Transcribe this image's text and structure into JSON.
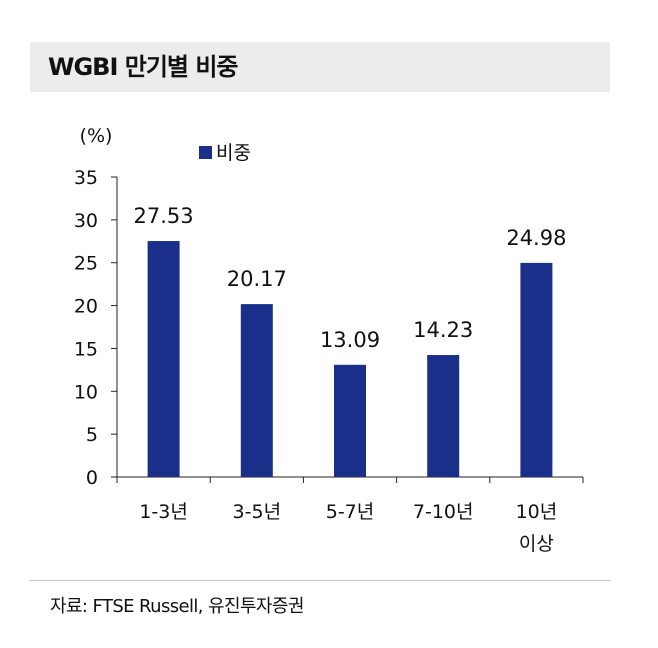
{
  "header": {
    "title": "WGBI 만기별 비중"
  },
  "chart_data": {
    "type": "bar",
    "unit_label": "(%)",
    "categories": [
      "1-3년",
      "3-5년",
      "5-7년",
      "7-10년",
      "10년 이상"
    ],
    "category_lines": [
      [
        "1-3년"
      ],
      [
        "3-5년"
      ],
      [
        "5-7년"
      ],
      [
        "7-10년"
      ],
      [
        "10년",
        "이상"
      ]
    ],
    "series": [
      {
        "name": "비중",
        "values": [
          27.53,
          20.17,
          13.09,
          14.23,
          24.98
        ],
        "labels": [
          "27.53",
          "20.17",
          "13.09",
          "14.23",
          "24.98"
        ]
      }
    ],
    "ylim": [
      0,
      35
    ],
    "yticks": [
      "0",
      "5",
      "10",
      "15",
      "20",
      "25",
      "30",
      "35"
    ],
    "legend_position": "top-left",
    "bar_color": "#1a2f8a",
    "grid": false
  },
  "footer": {
    "source": "자료: FTSE Russell, 유진투자증권"
  }
}
